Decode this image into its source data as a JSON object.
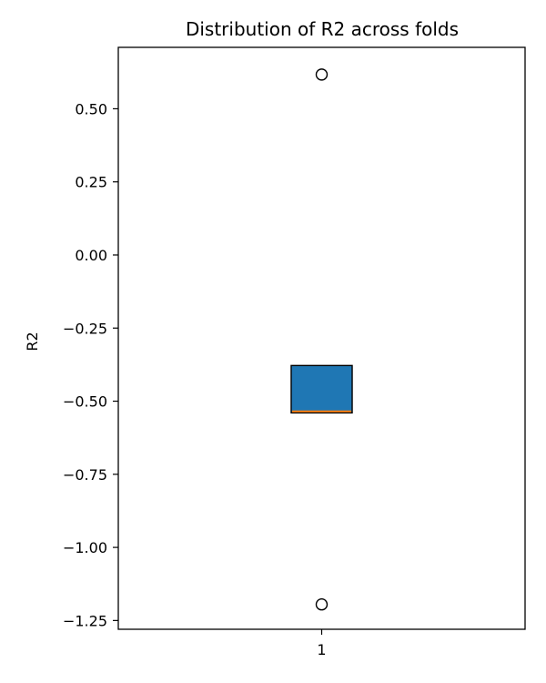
{
  "chart_data": {
    "type": "box",
    "title": "Distribution of R2 across folds",
    "ylabel": "R2",
    "xlabel": "",
    "categories": [
      "1"
    ],
    "ylim": [
      -1.28,
      0.71
    ],
    "yticks": [
      0.5,
      0.25,
      0.0,
      -0.25,
      -0.5,
      -0.75,
      -1.0,
      -1.25
    ],
    "ytick_labels": [
      "0.50",
      "0.25",
      "0.00",
      "−0.25",
      "−0.50",
      "−0.75",
      "−1.00",
      "−1.25"
    ],
    "boxes": [
      {
        "category": "1",
        "q1": -0.54,
        "median": -0.535,
        "q3": -0.378,
        "whisker_low": -0.54,
        "whisker_high": -0.378,
        "outliers": [
          0.617,
          -1.195
        ]
      }
    ],
    "colors": {
      "box_fill": "#1f77b4",
      "median": "#ff7f0e",
      "edge": "#000000"
    }
  }
}
